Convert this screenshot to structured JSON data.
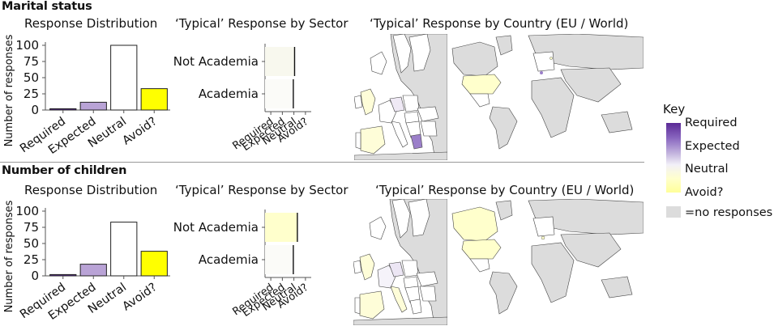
{
  "key": {
    "title": "Key",
    "labels": [
      "Required",
      "Expected",
      "Neutral",
      "Avoid?",
      "=no responses"
    ],
    "colors": {
      "required": "#5b2a96",
      "expected": "#b9a3d6",
      "neutral": "#ffffff",
      "avoid": "#ffff00",
      "no_responses": "#dcdcdc"
    }
  },
  "sections": [
    {
      "title": "Marital status",
      "dist_title": "Response Distribution",
      "sector_title": "‘Typical’ Response by Sector",
      "country_title": "‘Typical’ Response by Country (EU / World)"
    },
    {
      "title": "Number of children",
      "dist_title": "Response Distribution",
      "sector_title": "‘Typical’ Response by Sector",
      "country_title": "‘Typical’ Response by Country (EU / World)"
    }
  ],
  "chart_data": [
    {
      "type": "bar",
      "title": "Response Distribution",
      "ylabel": "Number of responses",
      "categories": [
        "Required",
        "Expected",
        "Neutral",
        "Avoid?"
      ],
      "values": [
        2,
        12,
        100,
        33
      ],
      "colors": [
        "#5b2a96",
        "#b9a3d6",
        "#ffffff",
        "#ffff00"
      ],
      "yticks": [
        0,
        25,
        50,
        75,
        100
      ],
      "ylim": [
        0,
        105
      ]
    },
    {
      "type": "bar",
      "title": "‘Typical’ Response by Sector",
      "categories": [
        "Academia",
        "Not Academia"
      ],
      "xticks": [
        "Required",
        "Expected",
        "Neutral",
        "Avoid?"
      ],
      "values": [
        2.95,
        3.06
      ],
      "fills": [
        "#fbfbf8",
        "#f8f8ee"
      ],
      "xlim": [
        0.5,
        4.5
      ]
    },
    {
      "type": "bar",
      "title": "Response Distribution",
      "ylabel": "Number of responses",
      "categories": [
        "Required",
        "Expected",
        "Neutral",
        "Avoid?"
      ],
      "values": [
        2,
        18,
        83,
        38
      ],
      "colors": [
        "#5b2a96",
        "#b9a3d6",
        "#ffffff",
        "#ffff00"
      ],
      "yticks": [
        0,
        25,
        50,
        75,
        100
      ],
      "ylim": [
        0,
        105
      ]
    },
    {
      "type": "bar",
      "title": "‘Typical’ Response by Sector",
      "categories": [
        "Academia",
        "Not Academia"
      ],
      "xticks": [
        "Required",
        "Expected",
        "Neutral",
        "Avoid?"
      ],
      "values": [
        2.95,
        3.3
      ],
      "fills": [
        "#fbfbf8",
        "#ffffcc"
      ],
      "xlim": [
        0.5,
        4.5
      ]
    }
  ]
}
